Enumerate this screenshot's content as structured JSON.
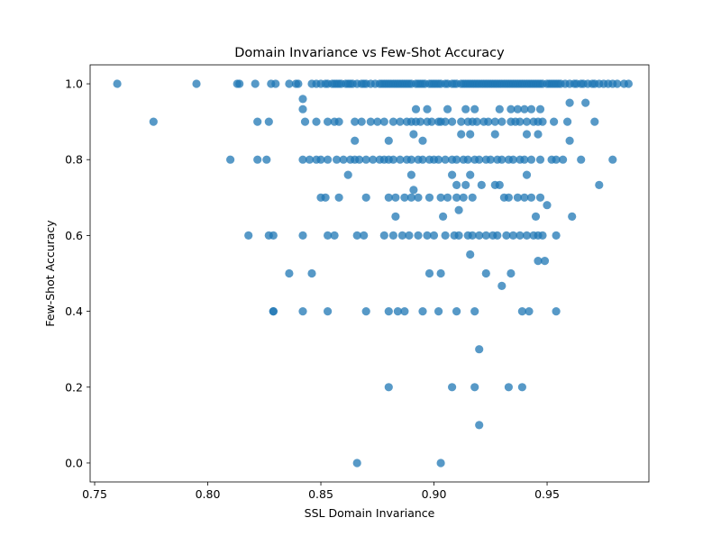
{
  "chart_data": {
    "type": "scatter",
    "title": "Domain Invariance vs Few-Shot Accuracy",
    "xlabel": "SSL Domain Invariance",
    "ylabel": "Few-Shot Accuracy",
    "xlim": [
      0.748,
      0.995
    ],
    "ylim": [
      -0.05,
      1.05
    ],
    "xticks": [
      "0.75",
      "0.80",
      "0.85",
      "0.90",
      "0.95"
    ],
    "yticks": [
      "0.0",
      "0.2",
      "0.4",
      "0.6",
      "0.8",
      "1.0"
    ],
    "grid": false,
    "legend": "none",
    "color": "#1f77b4",
    "series": [
      {
        "x": [
          0.76,
          0.795,
          0.813,
          0.814,
          0.821,
          0.828,
          0.83,
          0.836,
          0.839,
          0.84,
          0.846,
          0.848,
          0.85,
          0.852,
          0.853,
          0.855,
          0.856,
          0.857,
          0.858,
          0.859,
          0.861,
          0.862,
          0.863,
          0.864,
          0.866,
          0.868,
          0.869,
          0.87,
          0.872,
          0.874,
          0.876,
          0.877,
          0.878,
          0.879,
          0.88,
          0.881,
          0.882,
          0.883,
          0.884,
          0.885,
          0.886,
          0.887,
          0.888,
          0.889,
          0.89,
          0.892,
          0.893,
          0.894,
          0.895,
          0.896,
          0.898,
          0.899,
          0.9,
          0.901,
          0.902,
          0.903,
          0.905,
          0.906,
          0.908,
          0.909,
          0.91,
          0.912,
          0.913,
          0.914,
          0.915,
          0.916,
          0.917,
          0.918,
          0.919,
          0.92,
          0.921,
          0.922,
          0.923,
          0.924,
          0.925,
          0.926,
          0.927,
          0.928,
          0.929,
          0.93,
          0.931,
          0.932,
          0.933,
          0.934,
          0.935,
          0.936,
          0.937,
          0.938,
          0.939,
          0.94,
          0.941,
          0.942,
          0.943,
          0.944,
          0.945,
          0.946,
          0.947,
          0.948,
          0.95,
          0.951,
          0.952,
          0.953,
          0.954,
          0.955,
          0.956,
          0.958,
          0.96,
          0.962,
          0.963,
          0.965,
          0.966,
          0.968,
          0.97,
          0.971,
          0.973,
          0.975,
          0.977,
          0.979,
          0.981,
          0.984,
          0.986,
          0.776,
          0.822,
          0.827,
          0.843,
          0.848,
          0.853,
          0.856,
          0.858,
          0.865,
          0.868,
          0.872,
          0.875,
          0.878,
          0.882,
          0.885,
          0.888,
          0.89,
          0.892,
          0.894,
          0.897,
          0.899,
          0.902,
          0.903,
          0.905,
          0.908,
          0.912,
          0.915,
          0.917,
          0.919,
          0.922,
          0.924,
          0.927,
          0.93,
          0.934,
          0.936,
          0.938,
          0.941,
          0.944,
          0.946,
          0.948,
          0.953,
          0.959,
          0.971,
          0.892,
          0.897,
          0.906,
          0.914,
          0.918,
          0.929,
          0.934,
          0.937,
          0.94,
          0.943,
          0.947,
          0.96,
          0.967,
          0.842,
          0.842,
          0.865,
          0.88,
          0.891,
          0.895,
          0.912,
          0.916,
          0.927,
          0.941,
          0.946,
          0.96,
          0.81,
          0.822,
          0.826,
          0.842,
          0.845,
          0.848,
          0.85,
          0.853,
          0.857,
          0.86,
          0.863,
          0.865,
          0.867,
          0.87,
          0.873,
          0.876,
          0.878,
          0.88,
          0.882,
          0.885,
          0.888,
          0.89,
          0.893,
          0.895,
          0.898,
          0.9,
          0.902,
          0.905,
          0.908,
          0.91,
          0.913,
          0.915,
          0.918,
          0.92,
          0.923,
          0.925,
          0.928,
          0.93,
          0.933,
          0.935,
          0.938,
          0.94,
          0.943,
          0.947,
          0.952,
          0.954,
          0.957,
          0.965,
          0.979,
          0.862,
          0.89,
          0.908,
          0.916,
          0.941,
          0.891,
          0.91,
          0.914,
          0.921,
          0.927,
          0.929,
          0.973,
          0.85,
          0.852,
          0.858,
          0.87,
          0.88,
          0.883,
          0.887,
          0.89,
          0.893,
          0.898,
          0.903,
          0.906,
          0.91,
          0.913,
          0.917,
          0.931,
          0.933,
          0.937,
          0.94,
          0.943,
          0.947,
          0.95,
          0.883,
          0.904,
          0.911,
          0.945,
          0.961,
          0.818,
          0.827,
          0.829,
          0.842,
          0.853,
          0.856,
          0.866,
          0.869,
          0.878,
          0.882,
          0.886,
          0.889,
          0.893,
          0.897,
          0.9,
          0.905,
          0.909,
          0.911,
          0.915,
          0.917,
          0.92,
          0.923,
          0.926,
          0.928,
          0.932,
          0.935,
          0.938,
          0.941,
          0.944,
          0.946,
          0.948,
          0.954,
          0.916,
          0.946,
          0.949,
          0.836,
          0.846,
          0.898,
          0.903,
          0.923,
          0.934,
          0.93,
          0.829,
          0.829,
          0.842,
          0.853,
          0.87,
          0.88,
          0.884,
          0.887,
          0.895,
          0.902,
          0.91,
          0.918,
          0.939,
          0.942,
          0.954,
          0.92,
          0.88,
          0.908,
          0.918,
          0.933,
          0.939,
          0.92,
          0.866,
          0.903
        ],
        "y": [
          1.0,
          1.0,
          1.0,
          1.0,
          1.0,
          1.0,
          1.0,
          1.0,
          1.0,
          1.0,
          1.0,
          1.0,
          1.0,
          1.0,
          1.0,
          1.0,
          1.0,
          1.0,
          1.0,
          1.0,
          1.0,
          1.0,
          1.0,
          1.0,
          1.0,
          1.0,
          1.0,
          1.0,
          1.0,
          1.0,
          1.0,
          1.0,
          1.0,
          1.0,
          1.0,
          1.0,
          1.0,
          1.0,
          1.0,
          1.0,
          1.0,
          1.0,
          1.0,
          1.0,
          1.0,
          1.0,
          1.0,
          1.0,
          1.0,
          1.0,
          1.0,
          1.0,
          1.0,
          1.0,
          1.0,
          1.0,
          1.0,
          1.0,
          1.0,
          1.0,
          1.0,
          1.0,
          1.0,
          1.0,
          1.0,
          1.0,
          1.0,
          1.0,
          1.0,
          1.0,
          1.0,
          1.0,
          1.0,
          1.0,
          1.0,
          1.0,
          1.0,
          1.0,
          1.0,
          1.0,
          1.0,
          1.0,
          1.0,
          1.0,
          1.0,
          1.0,
          1.0,
          1.0,
          1.0,
          1.0,
          1.0,
          1.0,
          1.0,
          1.0,
          1.0,
          1.0,
          1.0,
          1.0,
          1.0,
          1.0,
          1.0,
          1.0,
          1.0,
          1.0,
          1.0,
          1.0,
          1.0,
          1.0,
          1.0,
          1.0,
          1.0,
          1.0,
          1.0,
          1.0,
          1.0,
          1.0,
          1.0,
          1.0,
          1.0,
          1.0,
          1.0,
          0.9,
          0.9,
          0.9,
          0.9,
          0.9,
          0.9,
          0.9,
          0.9,
          0.9,
          0.9,
          0.9,
          0.9,
          0.9,
          0.9,
          0.9,
          0.9,
          0.9,
          0.9,
          0.9,
          0.9,
          0.9,
          0.9,
          0.9,
          0.9,
          0.9,
          0.9,
          0.9,
          0.9,
          0.9,
          0.9,
          0.9,
          0.9,
          0.9,
          0.9,
          0.9,
          0.9,
          0.9,
          0.9,
          0.9,
          0.9,
          0.9,
          0.9,
          0.9,
          0.933,
          0.933,
          0.933,
          0.933,
          0.933,
          0.933,
          0.933,
          0.933,
          0.933,
          0.933,
          0.933,
          0.95,
          0.95,
          0.96,
          0.933,
          0.85,
          0.85,
          0.867,
          0.85,
          0.867,
          0.867,
          0.867,
          0.867,
          0.867,
          0.85,
          0.8,
          0.8,
          0.8,
          0.8,
          0.8,
          0.8,
          0.8,
          0.8,
          0.8,
          0.8,
          0.8,
          0.8,
          0.8,
          0.8,
          0.8,
          0.8,
          0.8,
          0.8,
          0.8,
          0.8,
          0.8,
          0.8,
          0.8,
          0.8,
          0.8,
          0.8,
          0.8,
          0.8,
          0.8,
          0.8,
          0.8,
          0.8,
          0.8,
          0.8,
          0.8,
          0.8,
          0.8,
          0.8,
          0.8,
          0.8,
          0.8,
          0.8,
          0.8,
          0.8,
          0.8,
          0.8,
          0.8,
          0.8,
          0.8,
          0.76,
          0.76,
          0.76,
          0.76,
          0.76,
          0.72,
          0.733,
          0.733,
          0.733,
          0.733,
          0.733,
          0.733,
          0.7,
          0.7,
          0.7,
          0.7,
          0.7,
          0.7,
          0.7,
          0.7,
          0.7,
          0.7,
          0.7,
          0.7,
          0.7,
          0.7,
          0.7,
          0.7,
          0.7,
          0.7,
          0.7,
          0.7,
          0.7,
          0.68,
          0.65,
          0.65,
          0.667,
          0.65,
          0.65,
          0.6,
          0.6,
          0.6,
          0.6,
          0.6,
          0.6,
          0.6,
          0.6,
          0.6,
          0.6,
          0.6,
          0.6,
          0.6,
          0.6,
          0.6,
          0.6,
          0.6,
          0.6,
          0.6,
          0.6,
          0.6,
          0.6,
          0.6,
          0.6,
          0.6,
          0.6,
          0.6,
          0.6,
          0.6,
          0.6,
          0.6,
          0.6,
          0.55,
          0.533,
          0.533,
          0.5,
          0.5,
          0.5,
          0.5,
          0.5,
          0.5,
          0.467,
          0.4,
          0.4,
          0.4,
          0.4,
          0.4,
          0.4,
          0.4,
          0.4,
          0.4,
          0.4,
          0.4,
          0.4,
          0.4,
          0.4,
          0.4,
          0.3,
          0.2,
          0.2,
          0.2,
          0.2,
          0.2,
          0.1,
          0.0,
          0.0
        ]
      }
    ]
  }
}
